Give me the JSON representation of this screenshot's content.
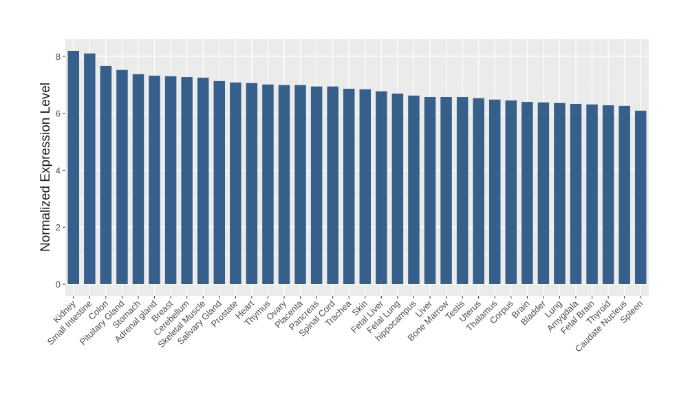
{
  "chart_data": {
    "type": "bar",
    "y_label": "Normalized Expression Level",
    "categories": [
      "Kidney",
      "Small Intestine",
      "Colon",
      "Pituitary Gland",
      "Stomach",
      "Adrenal gland",
      "Breast",
      "Cerebellum",
      "Skeletal Muscle",
      "Salivary Gland",
      "Prostate",
      "Heart",
      "Thymus",
      "Ovary",
      "Placenta",
      "Pancreas",
      "Spinal Cord",
      "Trachea",
      "Skin",
      "Fetal Liver",
      "Fetal Lung",
      "hippocampus",
      "Liver",
      "Bone Marrow",
      "Testis",
      "Uterus",
      "Thalamus",
      "Corpus",
      "Brain",
      "Bladder",
      "Lung",
      "Amygdala",
      "Fetal Brain",
      "Thyroid",
      "Caudate Nucleus",
      "Spleen"
    ],
    "values": [
      8.19,
      8.1,
      7.66,
      7.52,
      7.37,
      7.32,
      7.3,
      7.27,
      7.25,
      7.13,
      7.08,
      7.06,
      7.01,
      6.99,
      6.99,
      6.94,
      6.94,
      6.86,
      6.84,
      6.77,
      6.69,
      6.62,
      6.57,
      6.57,
      6.57,
      6.53,
      6.48,
      6.45,
      6.4,
      6.38,
      6.36,
      6.33,
      6.31,
      6.28,
      6.26,
      6.09
    ],
    "color": "#375f8b",
    "ylim": [
      -0.41,
      8.6
    ],
    "yticks": [
      0,
      2,
      4,
      6,
      8
    ],
    "grid": true
  }
}
